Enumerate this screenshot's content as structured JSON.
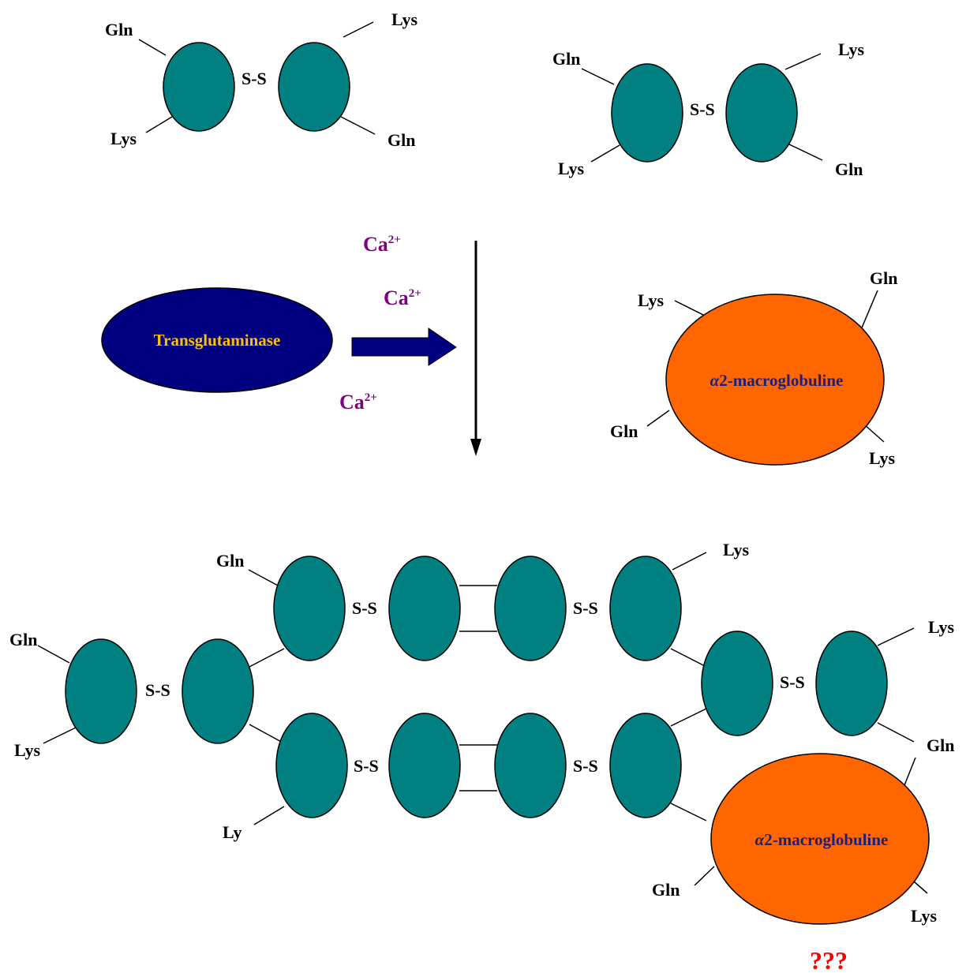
{
  "colors": {
    "subunit": "#008080",
    "transglutaminase": "#000080",
    "transglutaminase_text": "#FFC000",
    "macroglobulin": "#FF6600",
    "macroglobulin_text": "#1F1F7A",
    "calcium": "#800080",
    "question": "#FF0000"
  },
  "labels": {
    "gln": "Gln",
    "lys": "Lys",
    "ly": "Ly",
    "disulfide": "S-S"
  },
  "calcium": {
    "base": "Ca",
    "charge": "2+"
  },
  "enzyme": {
    "name": "Transglutaminase"
  },
  "macroglobulin": {
    "alpha": "α",
    "name": "2-macroglobuline"
  },
  "question": "???"
}
